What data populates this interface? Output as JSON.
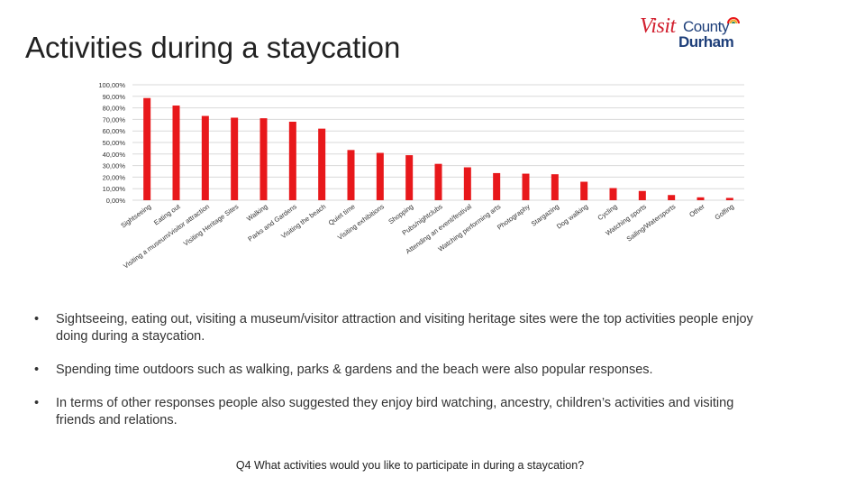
{
  "page": {
    "title": "Activities during a staycation",
    "logo": {
      "visit": "Visit",
      "county": "County",
      "durham": "Durham"
    },
    "bullets": [
      "Sightseeing, eating out, visiting a museum/visitor attraction and visiting heritage sites were the top activities people enjoy doing during a staycation.",
      "Spending time outdoors such as walking, parks & gardens and the beach were also popular responses.",
      "In terms of other responses people also suggested they enjoy bird watching, ancestry, children’s activities and visiting friends and relations."
    ],
    "question": "Q4 What activities would you like to participate in during a staycation?"
  },
  "colors": {
    "bar": "#e8181b",
    "grid": "#d9d9d9",
    "logo_red": "#d2202f",
    "logo_blue": "#1e3f7a"
  },
  "chart_data": {
    "type": "bar",
    "title": "",
    "xlabel": "",
    "ylabel": "",
    "ylim": [
      0,
      100
    ],
    "yticks": [
      "0,00%",
      "10,00%",
      "20,00%",
      "30,00%",
      "40,00%",
      "50,00%",
      "60,00%",
      "70,00%",
      "80,00%",
      "90,00%",
      "100,00%"
    ],
    "grid": true,
    "legend": "none",
    "categories": [
      "Sightseeing",
      "Eating out",
      "Visiting a museum/visitor attraction",
      "Visiting Heritage Sites",
      "Walking",
      "Parks and Gardens",
      "Visiting the beach",
      "Quiet time",
      "Visiting exhibitions",
      "Shopping",
      "Pubs/nightclubs",
      "Attending an event/festival",
      "Watching performing arts",
      "Photography",
      "Stargazing",
      "Dog walking",
      "Cycling",
      "Watching sports",
      "Sailing/Watersports",
      "Other",
      "Golfing"
    ],
    "values": [
      88.5,
      82,
      73,
      71.5,
      71,
      68,
      62,
      43.5,
      41,
      39,
      31.5,
      28.5,
      23.5,
      23,
      22.5,
      16,
      10.5,
      8,
      4.5,
      2.5,
      2
    ]
  }
}
